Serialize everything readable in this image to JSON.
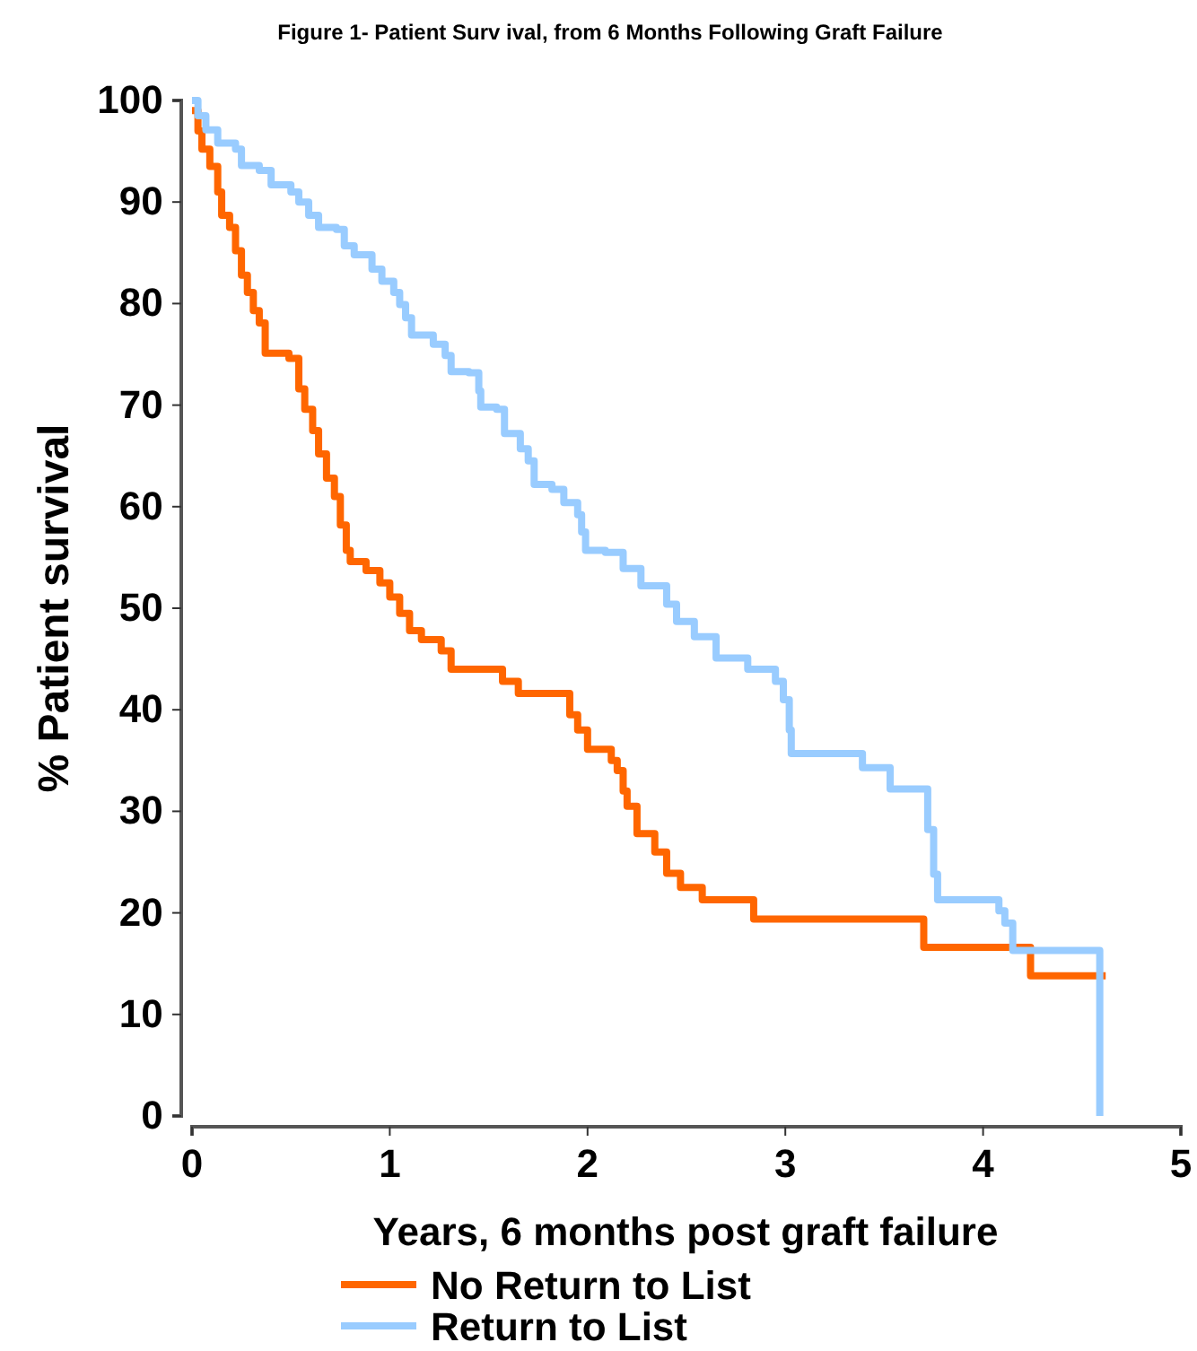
{
  "chart_data": {
    "type": "step",
    "title": "Figure 1- Patient Surv ival, from 6 Months Following Graft Failure",
    "xlabel": "Years, 6 months post graft failure",
    "ylabel": "% Patient survival",
    "xlim": [
      0,
      5
    ],
    "xticks": [
      0,
      1,
      2,
      3,
      4,
      5
    ],
    "ylim": [
      0,
      100
    ],
    "yticks": [
      0,
      10,
      20,
      30,
      40,
      50,
      60,
      70,
      80,
      90,
      100
    ],
    "grid": false,
    "legend": "bottom",
    "line_style": "solid",
    "marker": "none",
    "series": [
      {
        "name": "No Return to List",
        "color": "#ff6600",
        "x": [
          0,
          0.03,
          0.05,
          0.09,
          0.13,
          0.15,
          0.19,
          0.22,
          0.25,
          0.28,
          0.31,
          0.34,
          0.37,
          0.49,
          0.54,
          0.57,
          0.61,
          0.64,
          0.68,
          0.72,
          0.75,
          0.78,
          0.8,
          0.88,
          0.95,
          1.0,
          1.05,
          1.1,
          1.16,
          1.26,
          1.31,
          1.57,
          1.65,
          1.91,
          1.95,
          2.0,
          2.12,
          2.15,
          2.18,
          2.2,
          2.25,
          2.34,
          2.4,
          2.47,
          2.58,
          2.84,
          3.7,
          4.24,
          4.62
        ],
        "values": [
          99,
          97,
          95.2,
          93.5,
          91,
          88.7,
          87.5,
          85.2,
          82.8,
          81.1,
          79.3,
          78.1,
          75.1,
          74.6,
          71.6,
          69.6,
          67.5,
          65.2,
          62.8,
          61,
          58.2,
          55.7,
          54.6,
          53.7,
          52.5,
          51.1,
          49.5,
          47.8,
          46.9,
          45.8,
          44,
          42.8,
          41.6,
          39.5,
          38,
          36.1,
          35,
          34,
          32,
          30.5,
          27.8,
          26,
          23.9,
          22.5,
          21.3,
          19.4,
          16.6,
          13.8,
          13.8
        ]
      },
      {
        "name": "Return to List",
        "color": "#99ccff",
        "x": [
          0,
          0.03,
          0.07,
          0.13,
          0.22,
          0.25,
          0.34,
          0.4,
          0.5,
          0.54,
          0.59,
          0.64,
          0.73,
          0.77,
          0.82,
          0.91,
          0.96,
          1.02,
          1.05,
          1.08,
          1.11,
          1.22,
          1.28,
          1.31,
          1.4,
          1.45,
          1.46,
          1.54,
          1.58,
          1.66,
          1.7,
          1.73,
          1.82,
          1.88,
          1.95,
          1.97,
          1.99,
          2.09,
          2.18,
          2.27,
          2.4,
          2.45,
          2.54,
          2.65,
          2.81,
          2.95,
          2.99,
          3.02,
          3.03,
          3.39,
          3.53,
          3.72,
          3.75,
          3.77,
          4.08,
          4.11,
          4.15,
          4.21,
          4.59,
          4.59
        ],
        "values": [
          100,
          98.5,
          97.1,
          95.8,
          95.2,
          93.6,
          93.1,
          91.7,
          91,
          90,
          88.7,
          87.5,
          87.3,
          85.7,
          84.8,
          83.4,
          82.2,
          81.1,
          79.9,
          78.6,
          76.9,
          76,
          74.9,
          73.3,
          73.2,
          71.4,
          69.8,
          69.6,
          67.2,
          65.7,
          64.5,
          62.2,
          61.7,
          60.4,
          59.2,
          57.5,
          55.7,
          55.5,
          53.9,
          52.2,
          50.4,
          48.7,
          47.2,
          45.1,
          44,
          42.8,
          41,
          38,
          35.7,
          34.3,
          32.2,
          28.2,
          23.8,
          21.3,
          20.2,
          19,
          16.3,
          16.3,
          16.3,
          0
        ]
      }
    ]
  }
}
